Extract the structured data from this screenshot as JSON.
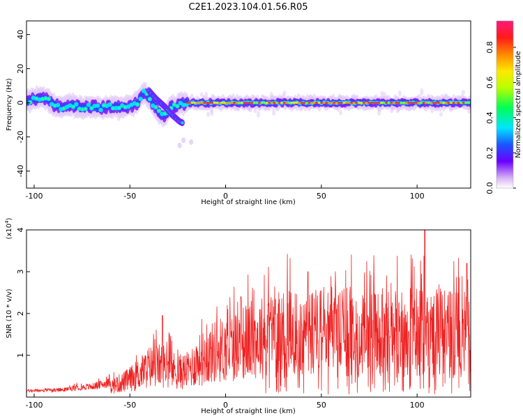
{
  "title": "C2E1.2023.104.01.56.R05",
  "chart_data": [
    {
      "type": "heatmap",
      "title": "C2E1.2023.104.01.56.R05",
      "xlabel": "Height of straight line (km)",
      "ylabel": "Frequency (Hz)",
      "xlim": [
        -104,
        128
      ],
      "ylim": [
        -50,
        48
      ],
      "xticks": [
        "-100",
        "-50",
        "0",
        "50",
        "100"
      ],
      "yticks": [
        "40",
        "20",
        "0",
        "-20",
        "-40"
      ],
      "colorbar": {
        "label": "Normalized spectral amplitude",
        "range": [
          0.0,
          0.95
        ],
        "ticks": [
          "0.0",
          "0.2",
          "0.4",
          "0.6",
          "0.8"
        ]
      },
      "tracks": [
        {
          "name": "main-trace",
          "points": [
            [
              -103,
              1
            ],
            [
              -98,
              3
            ],
            [
              -93,
              2
            ],
            [
              -90,
              -1
            ],
            [
              -85,
              -3
            ],
            [
              -80,
              -1
            ],
            [
              -75,
              -3
            ],
            [
              -70,
              -2
            ],
            [
              -65,
              -3
            ],
            [
              -60,
              -2
            ],
            [
              -55,
              -3
            ],
            [
              -50,
              -2
            ],
            [
              -46,
              0
            ],
            [
              -43,
              6
            ],
            [
              -40,
              3
            ],
            [
              -36,
              -4
            ],
            [
              -32,
              -8
            ],
            [
              -28,
              -2
            ],
            [
              -24,
              -1
            ],
            [
              -21,
              0
            ],
            [
              -15,
              0
            ],
            [
              0,
              0
            ],
            [
              20,
              0
            ],
            [
              40,
              0
            ],
            [
              60,
              0
            ],
            [
              80,
              0
            ],
            [
              100,
              0
            ],
            [
              128,
              0
            ]
          ]
        },
        {
          "name": "branch-trace",
          "points": [
            [
              -40,
              7
            ],
            [
              -36,
              2
            ],
            [
              -32,
              -2
            ],
            [
              -28,
              -7
            ],
            [
              -24,
              -11
            ],
            [
              -22,
              -12
            ]
          ]
        }
      ]
    },
    {
      "type": "line",
      "xlabel": "Height of straight line (km)",
      "ylabel": "SNR (10 * v/v)",
      "yscale_label": "(x10",
      "yscale_exp": "4",
      "yscale_close": ")",
      "xlim": [
        -104,
        128
      ],
      "ylim": [
        0,
        4
      ],
      "xticks": [
        "-100",
        "-50",
        "0",
        "50",
        "100"
      ],
      "yticks": [
        "1",
        "2",
        "3",
        "4"
      ],
      "series_color": "#ee2222",
      "envelope": [
        [
          -104,
          0.1
        ],
        [
          -85,
          0.12
        ],
        [
          -78,
          0.18
        ],
        [
          -70,
          0.2
        ],
        [
          -60,
          0.3
        ],
        [
          -52,
          0.45
        ],
        [
          -45,
          0.65
        ],
        [
          -40,
          0.85
        ],
        [
          -32,
          0.9
        ],
        [
          -25,
          0.7
        ],
        [
          -20,
          0.75
        ],
        [
          -15,
          1.0
        ],
        [
          -10,
          1.15
        ],
        [
          -5,
          1.3
        ],
        [
          0,
          1.35
        ],
        [
          10,
          1.55
        ],
        [
          20,
          1.7
        ],
        [
          30,
          1.8
        ],
        [
          50,
          1.85
        ],
        [
          80,
          1.8
        ],
        [
          110,
          1.8
        ],
        [
          128,
          1.75
        ]
      ],
      "peaks": [
        [
          -33,
          1.95
        ],
        [
          8,
          2.4
        ],
        [
          43,
          3.0
        ],
        [
          104,
          4.0
        ],
        [
          126,
          3.2
        ]
      ]
    }
  ]
}
